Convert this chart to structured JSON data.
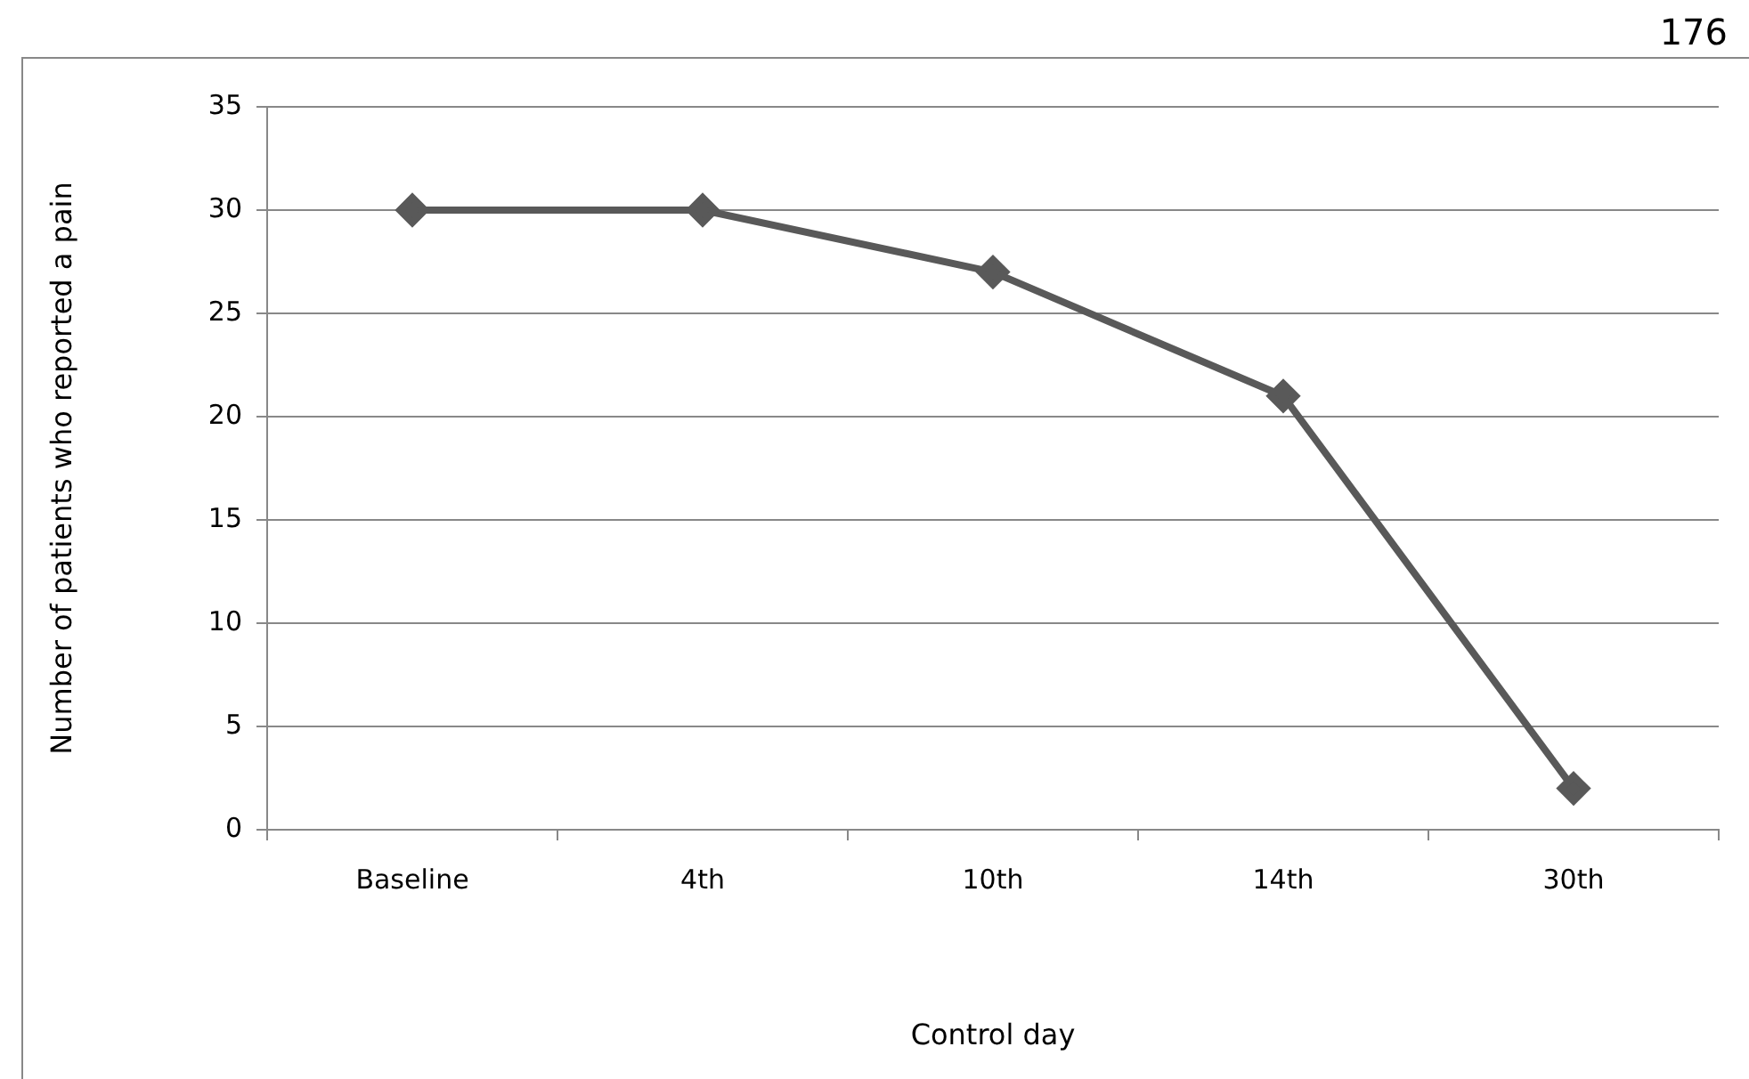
{
  "chart_data": {
    "type": "line",
    "xlabel": "Control day",
    "ylabel": "Number of patients who reported a pain",
    "categories": [
      "Baseline",
      "4th",
      "10th",
      "14th",
      "30th"
    ],
    "series": [
      {
        "color": "#595959",
        "values": [
          30,
          30,
          27,
          21,
          2
        ]
      }
    ],
    "ylim": [
      0,
      35
    ],
    "yticks": [
      0,
      5,
      10,
      15,
      20,
      25,
      30,
      35
    ],
    "grid": "y",
    "legend": false,
    "marker": "diamond",
    "line_style": "solid",
    "annotations": [
      "176"
    ]
  }
}
